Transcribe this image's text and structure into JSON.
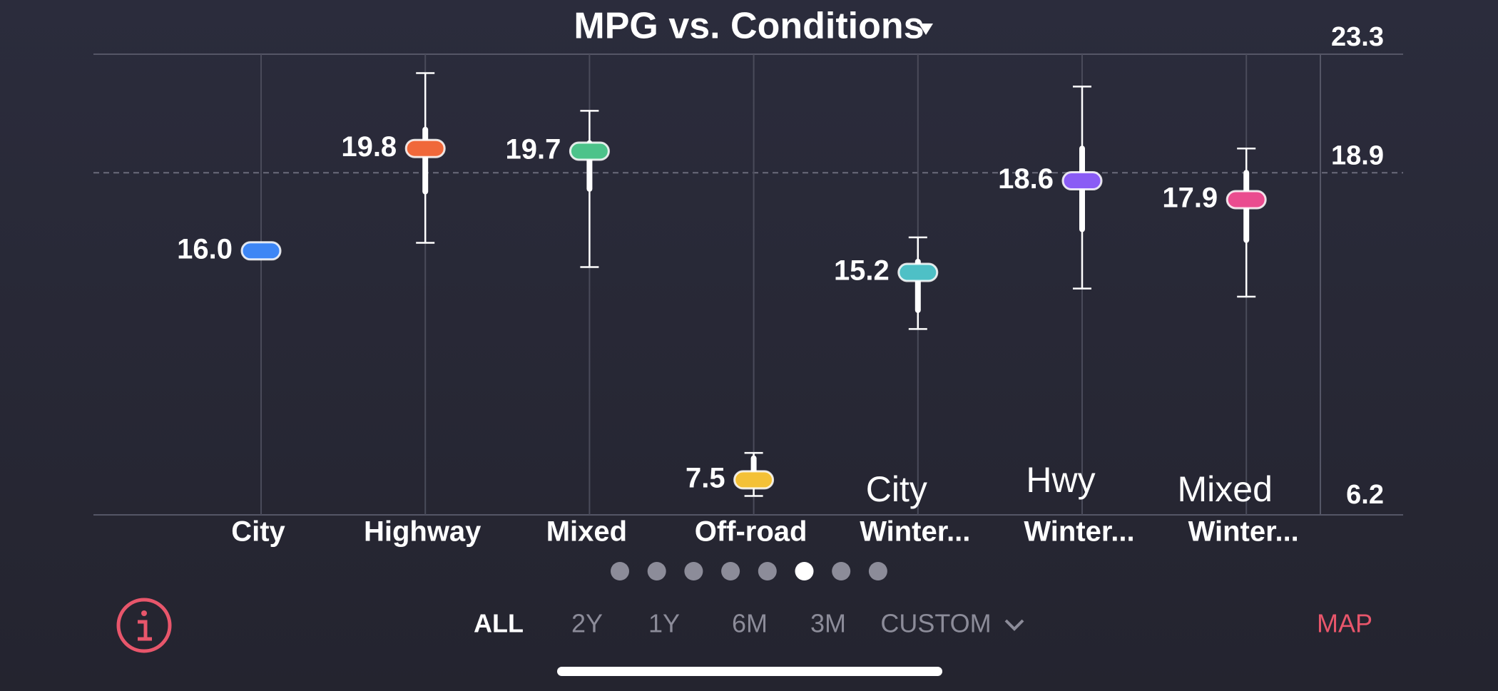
{
  "chart_data": {
    "type": "range-dot",
    "title": "MPG vs. Conditions",
    "categories": [
      "City",
      "Highway",
      "Mixed",
      "Off-road",
      "Winter...",
      "Winter...",
      "Winter..."
    ],
    "category_notes": [
      null,
      null,
      null,
      null,
      "City",
      "Hwy",
      "Mixed"
    ],
    "values": [
      16.0,
      19.8,
      19.7,
      7.5,
      15.2,
      18.6,
      17.9
    ],
    "value_labels": [
      "16.0",
      "19.8",
      "19.7",
      "7.5",
      "15.2",
      "18.6",
      "17.9"
    ],
    "colors": [
      "#3d86f5",
      "#f0683a",
      "#4cc38a",
      "#f4c137",
      "#4ec0c6",
      "#8a5cf5",
      "#ea4c8f"
    ],
    "low": [
      null,
      16.3,
      15.4,
      6.9,
      13.1,
      14.6,
      14.3
    ],
    "high": [
      null,
      22.6,
      21.2,
      8.5,
      16.5,
      22.1,
      19.8
    ],
    "q1": [
      null,
      18.2,
      18.3,
      7.8,
      13.8,
      16.8,
      16.4
    ],
    "q3": [
      null,
      20.5,
      20.0,
      8.3,
      15.6,
      19.8,
      18.9
    ],
    "ylim": [
      6.2,
      23.3
    ],
    "yticks": [
      6.2,
      18.9,
      23.3
    ]
  },
  "controls": {
    "ranges": [
      "ALL",
      "2Y",
      "1Y",
      "6M",
      "3M",
      "CUSTOM"
    ],
    "active": "ALL",
    "map": "MAP"
  }
}
